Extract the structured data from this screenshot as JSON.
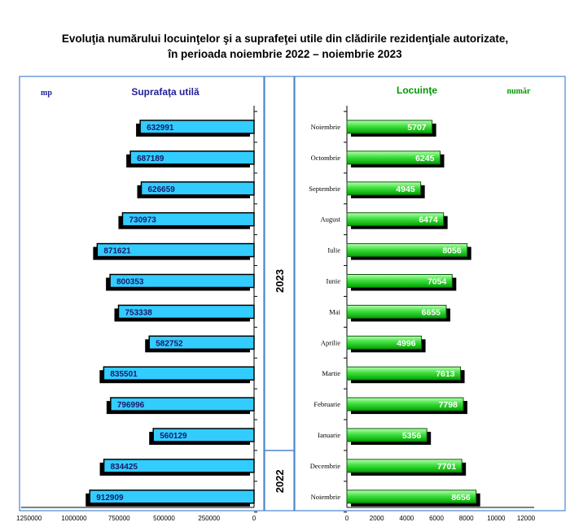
{
  "title_line1": "Evoluţia numărului locuinţelor şi a suprafeţei utile din clădirile rezidenţiale autorizate,",
  "title_line2": "în perioada noiembrie 2022 – noiembrie 2023",
  "colors": {
    "area_bar": "#33CCFF",
    "dwellings_bar_light": "#99FF99",
    "dwellings_bar_dark": "#00A000",
    "frame": "#4A86D0",
    "area_label": "#1F1F99",
    "dwellings_label": "#009900"
  },
  "chart_data": [
    {
      "type": "bar",
      "orientation": "horizontal",
      "direction": "right-to-left",
      "title": "Suprafaţa utilă",
      "unit_label": "mp",
      "categories": [
        "Noiembrie",
        "Octombrie",
        "Septembrie",
        "August",
        "Iulie",
        "Iunie",
        "Mai",
        "Aprilie",
        "Martie",
        "Februarie",
        "Ianuarie",
        "Decembrie",
        "Noiembrie"
      ],
      "values": [
        632991,
        687189,
        626659,
        730973,
        871621,
        800353,
        753338,
        582752,
        835501,
        796996,
        560129,
        834425,
        912909
      ],
      "xlim": [
        0,
        1250000
      ],
      "xticks": [
        1250000,
        1000000,
        750000,
        500000,
        250000,
        0
      ]
    },
    {
      "type": "bar",
      "orientation": "horizontal",
      "title": "Locuinţe",
      "unit_label": "număr",
      "categories": [
        "Noiembrie",
        "Octombrie",
        "Septembrie",
        "August",
        "Iulie",
        "Iunie",
        "Mai",
        "Aprilie",
        "Martie",
        "Februarie",
        "Ianuarie",
        "Decembrie",
        "Noiembrie"
      ],
      "values": [
        5707,
        6245,
        4945,
        6474,
        8056,
        7054,
        6655,
        4996,
        7613,
        7798,
        5356,
        7701,
        8656
      ],
      "xlim": [
        0,
        12000
      ],
      "xticks": [
        0,
        2000,
        4000,
        6000,
        8000,
        10000,
        12000
      ]
    }
  ],
  "year_groups": [
    {
      "label": "2023",
      "count": 11
    },
    {
      "label": "2022",
      "count": 2
    }
  ]
}
